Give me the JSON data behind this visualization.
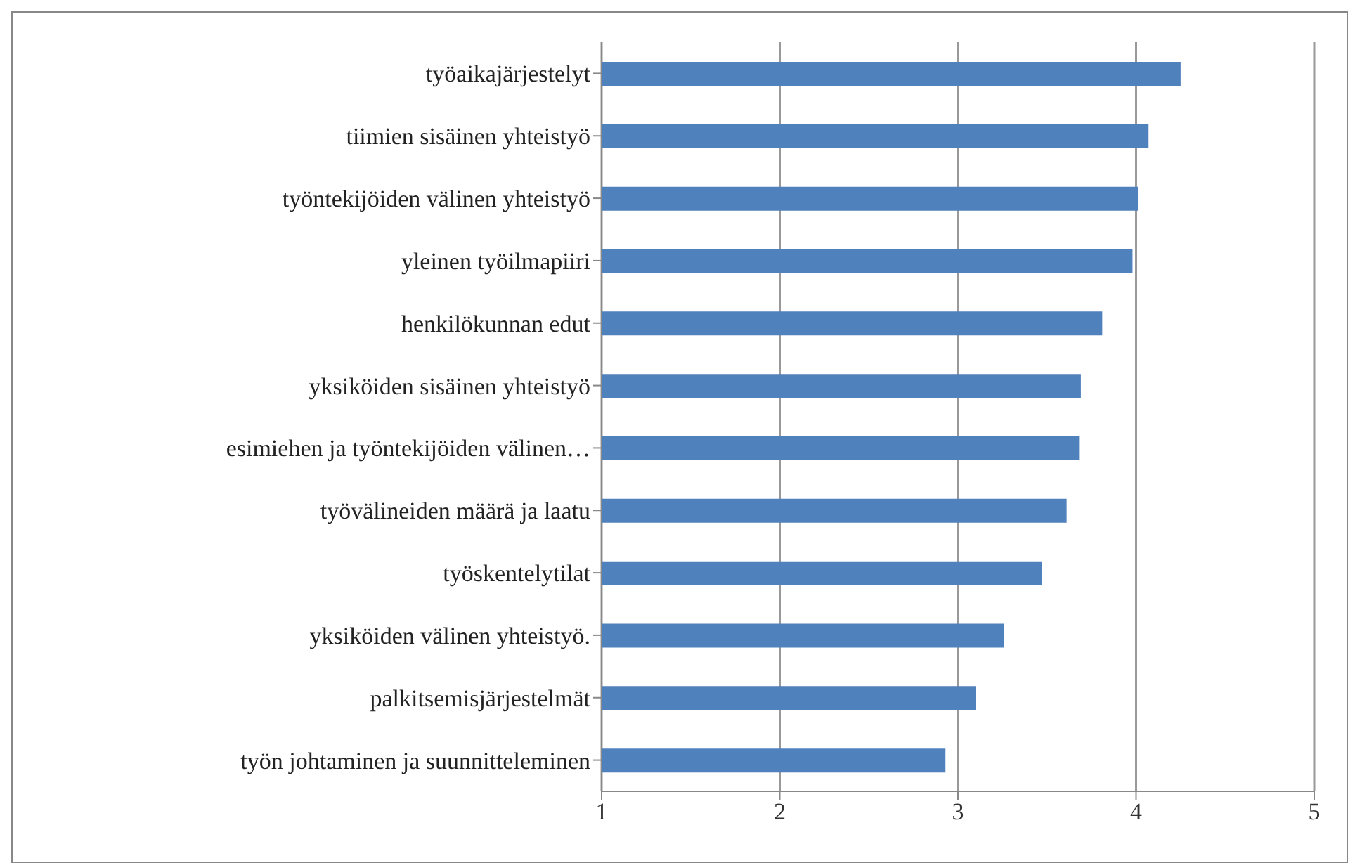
{
  "chart_data": {
    "type": "bar",
    "orientation": "horizontal",
    "categories": [
      "työaikajärjestelyt",
      "tiimien sisäinen yhteistyö",
      "työntekijöiden välinen yhteistyö",
      "yleinen työilmapiiri",
      "henkilökunnan edut",
      "yksiköiden sisäinen yhteistyö",
      "esimiehen ja työntekijöiden välinen…",
      "työvälineiden määrä ja laatu",
      "työskentelytilat",
      "yksiköiden välinen yhteistyö.",
      "palkitsemisjärjestelmät",
      "työn johtaminen ja suunnitteleminen"
    ],
    "values": [
      4.25,
      4.07,
      4.01,
      3.98,
      3.81,
      3.69,
      3.68,
      3.61,
      3.47,
      3.26,
      3.1,
      2.93
    ],
    "color": "#4f81bd",
    "xlim": [
      1,
      5
    ],
    "xticks": [
      1,
      2,
      3,
      4,
      5
    ],
    "grid": "x",
    "legend": false
  }
}
